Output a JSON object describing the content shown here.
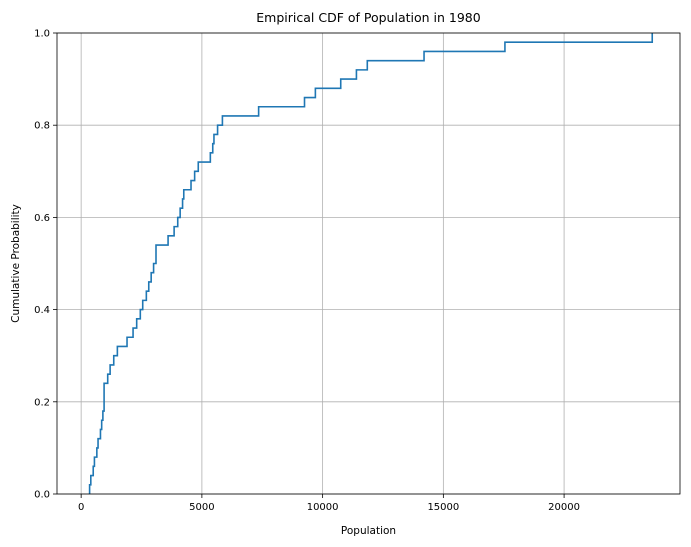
{
  "chart_data": {
    "type": "line",
    "title": "Empirical CDF of Population in 1980",
    "xlabel": "Population",
    "ylabel": "Cumulative Probability",
    "xlim": [
      -1000,
      24800
    ],
    "ylim": [
      0,
      1.0
    ],
    "x_ticks": [
      0,
      5000,
      10000,
      15000,
      20000
    ],
    "x_tick_labels": [
      "0",
      "5000",
      "10000",
      "15000",
      "20000"
    ],
    "y_ticks": [
      0.0,
      0.2,
      0.4,
      0.6,
      0.8,
      1.0
    ],
    "y_tick_labels": [
      "0.0",
      "0.2",
      "0.4",
      "0.6",
      "0.8",
      "1.0"
    ],
    "grid": true,
    "line_color": "#1f77b4",
    "series": [
      {
        "step": "post",
        "x": [
          350,
          400,
          500,
          550,
          650,
          700,
          800,
          850,
          900,
          950,
          1100,
          1200,
          1350,
          1500,
          1600,
          1900,
          2150,
          2300,
          2450,
          2550,
          2700,
          2800,
          2900,
          3000,
          3100,
          3600,
          3850,
          4000,
          4100,
          4200,
          4250,
          4550,
          4700,
          4850,
          5000,
          5350,
          5450,
          5500,
          5650,
          5750,
          5850,
          7350,
          9250,
          9700,
          10750,
          11400,
          11850,
          14200,
          17550,
          23650
        ],
        "y": [
          0.02,
          0.04,
          0.06,
          0.08,
          0.1,
          0.12,
          0.14,
          0.16,
          0.18,
          0.24,
          0.26,
          0.28,
          0.3,
          0.32,
          0.32,
          0.34,
          0.36,
          0.38,
          0.4,
          0.42,
          0.44,
          0.46,
          0.48,
          0.5,
          0.54,
          0.56,
          0.58,
          0.6,
          0.62,
          0.64,
          0.66,
          0.68,
          0.7,
          0.72,
          0.72,
          0.74,
          0.76,
          0.78,
          0.8,
          0.8,
          0.82,
          0.84,
          0.86,
          0.88,
          0.9,
          0.92,
          0.94,
          0.96,
          0.98,
          1.0
        ]
      }
    ]
  }
}
